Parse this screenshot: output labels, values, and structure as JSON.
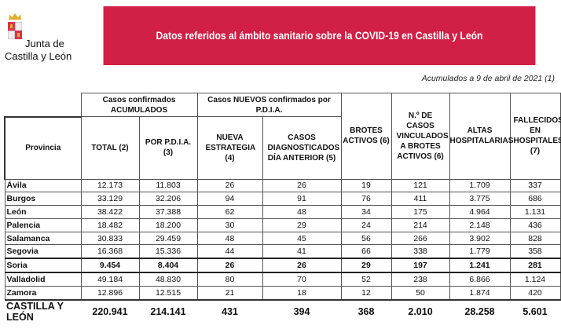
{
  "logo": {
    "line1": "Junta de",
    "line2": "Castilla y León"
  },
  "title": "Datos referidos al ámbito sanitario sobre la COVID-19 en Castilla y León",
  "subtitle": "Acumulados a 9 de abril de 2021 (1)",
  "colors": {
    "banner": "#d21f45"
  },
  "groups": {
    "acumulados": "Casos confirmados ACUMULADOS",
    "nuevos": "Casos NUEVOS confirmados por P.D.I.A."
  },
  "headers": [
    "Provincia",
    "TOTAL (2)",
    "POR P.D.I.A. (3)",
    "NUEVA ESTRATEGIA (4)",
    "CASOS DIAGNOSTICADOS DÍA ANTERIOR (5)",
    "BROTES ACTIVOS (6)",
    "N.º DE CASOS VINCULADOS A BROTES ACTIVOS (6)",
    "ALTAS HOSPITALARIAS",
    "FALLECIDOS EN HOSPITALES (7)"
  ],
  "rows": [
    [
      "Ávila",
      "12.173",
      "11.803",
      "26",
      "26",
      "19",
      "121",
      "1.709",
      "337"
    ],
    [
      "Burgos",
      "33.129",
      "32.206",
      "94",
      "91",
      "76",
      "411",
      "3.775",
      "686"
    ],
    [
      "León",
      "38.422",
      "37.388",
      "62",
      "48",
      "34",
      "175",
      "4.964",
      "1.131"
    ],
    [
      "Palencia",
      "18.482",
      "18.200",
      "30",
      "29",
      "24",
      "214",
      "2.148",
      "436"
    ],
    [
      "Salamanca",
      "30.833",
      "29.459",
      "48",
      "45",
      "56",
      "266",
      "3.902",
      "828"
    ],
    [
      "Segovia",
      "16.368",
      "15.336",
      "44",
      "41",
      "66",
      "338",
      "1.779",
      "358"
    ],
    [
      "Soria",
      "9.454",
      "8.404",
      "26",
      "26",
      "29",
      "197",
      "1.241",
      "281"
    ],
    [
      "Valladolid",
      "49.184",
      "48.830",
      "80",
      "70",
      "52",
      "238",
      "6.866",
      "1.124"
    ],
    [
      "Zamora",
      "12.896",
      "12.515",
      "21",
      "18",
      "12",
      "50",
      "1.874",
      "420"
    ]
  ],
  "total": [
    "CASTILLA Y LEÓN",
    "220.941",
    "214.141",
    "431",
    "394",
    "368",
    "2.010",
    "28.258",
    "5.601"
  ]
}
